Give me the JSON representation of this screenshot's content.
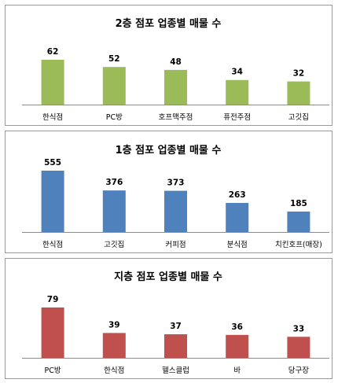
{
  "chart_data": [
    {
      "type": "bar",
      "title": "2층 점포 업종별 매물 수",
      "categories": [
        "한식점",
        "PC방",
        "호프맥주점",
        "퓨전주점",
        "고깃집"
      ],
      "values": [
        62,
        52,
        48,
        34,
        32
      ],
      "color": "#9BBB59"
    },
    {
      "type": "bar",
      "title": "1층 점포 업종별 매물 수",
      "categories": [
        "한식점",
        "고깃집",
        "커피점",
        "분식점",
        "치킨호프(매장)"
      ],
      "values": [
        555,
        376,
        373,
        263,
        185
      ],
      "color": "#4F81BD"
    },
    {
      "type": "bar",
      "title": "지층 점포 업종별 매물 수",
      "categories": [
        "PC방",
        "한식점",
        "헬스클럽",
        "바",
        "당구장"
      ],
      "values": [
        79,
        39,
        37,
        36,
        33
      ],
      "color": "#C0504D"
    }
  ]
}
